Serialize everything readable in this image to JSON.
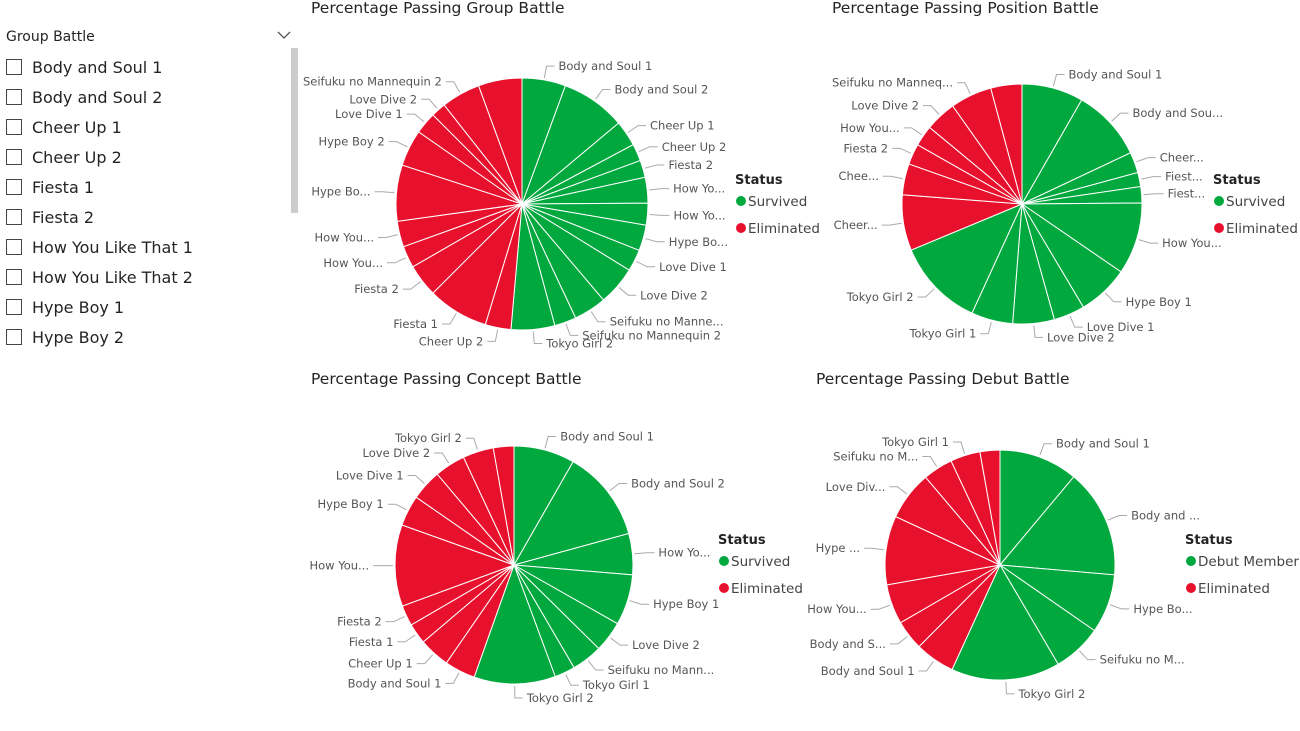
{
  "slicer": {
    "title": "Group Battle",
    "items": [
      "Body and Soul 1",
      "Body and Soul 2",
      "Cheer Up 1",
      "Cheer Up 2",
      "Fiesta 1",
      "Fiesta 2",
      "How You Like That 1",
      "How You Like That 2",
      "Hype Boy 1",
      "Hype Boy 2"
    ]
  },
  "chart_data": [
    {
      "type": "pie",
      "title": "Percentage Passing Group Battle",
      "legend_title": "Status",
      "series": [
        {
          "name": "Survived",
          "color": "#01a83e"
        },
        {
          "name": "Eliminated",
          "color": "#e8112d"
        }
      ],
      "categories": [
        "Body and Soul 1",
        "Body and Soul 2",
        "Cheer Up 1",
        "Cheer Up 2",
        "Fiesta 2",
        "How Yo...",
        "How Yo...",
        "Hype Bo...",
        "Love Dive 1",
        "Love Dive 2",
        "Seifuku no Manne...",
        "Seifuku no Mannequin 2",
        "Tokyo Girl 2",
        "Cheer Up 2",
        "Fiesta 1",
        "Fiesta 2",
        "How You...",
        "How You...",
        "Hype Bo...",
        "Hype Boy 2",
        "Love Dive 1",
        "Love Dive 2",
        "Seifuku no Mannequin 2",
        null
      ],
      "values": [
        5.6,
        8.3,
        3.3,
        2.2,
        2.2,
        3.3,
        2.8,
        3.3,
        2.8,
        5,
        4.2,
        2.8,
        5.6,
        3.3,
        7.8,
        4.2,
        2.8,
        3.3,
        7.2,
        4.7,
        2.8,
        1.9,
        5,
        5.6
      ],
      "colors": [
        "#01a83e",
        "#01a83e",
        "#01a83e",
        "#01a83e",
        "#01a83e",
        "#01a83e",
        "#01a83e",
        "#01a83e",
        "#01a83e",
        "#01a83e",
        "#01a83e",
        "#01a83e",
        "#01a83e",
        "#e8112d",
        "#e8112d",
        "#e8112d",
        "#e8112d",
        "#e8112d",
        "#e8112d",
        "#e8112d",
        "#e8112d",
        "#e8112d",
        "#e8112d",
        "#e8112d"
      ]
    },
    {
      "type": "pie",
      "title": "Percentage Passing Position Battle",
      "legend_title": "Status",
      "series": [
        {
          "name": "Survived",
          "color": "#01a83e"
        },
        {
          "name": "Eliminated",
          "color": "#e8112d"
        }
      ],
      "categories": [
        "Body and Soul 1",
        "Body and Sou...",
        "Cheer...",
        "Fiest...",
        "Fiest...",
        "How You...",
        "Hype Boy 1",
        "Love Dive 1",
        "Love Dive 2",
        "Tokyo Girl 1",
        "Tokyo Girl 2",
        "Cheer...",
        "Chee...",
        "Fiesta 2",
        "How You...",
        "Love Dive 2",
        "Seifuku no Manneq...",
        null
      ],
      "values": [
        8.3,
        9.7,
        2.8,
        1.9,
        2.2,
        9.7,
        6.9,
        4.2,
        5.6,
        5.6,
        11.9,
        7.5,
        4.2,
        2.8,
        2.8,
        4.2,
        5.6,
        4.2
      ],
      "colors": [
        "#01a83e",
        "#01a83e",
        "#01a83e",
        "#01a83e",
        "#01a83e",
        "#01a83e",
        "#01a83e",
        "#01a83e",
        "#01a83e",
        "#01a83e",
        "#01a83e",
        "#e8112d",
        "#e8112d",
        "#e8112d",
        "#e8112d",
        "#e8112d",
        "#e8112d",
        "#e8112d"
      ]
    },
    {
      "type": "pie",
      "title": "Percentage Passing Concept Battle",
      "legend_title": "Status",
      "series": [
        {
          "name": "Survived",
          "color": "#01a83e"
        },
        {
          "name": "Eliminated",
          "color": "#e8112d"
        }
      ],
      "categories": [
        "Body and Soul 1",
        "Body and Soul 2",
        "How Yo...",
        "Hype Boy 1",
        "Love Dive 2",
        "Seifuku no Mann...",
        "Tokyo Girl 1",
        "Tokyo Girl 2",
        "Body and Soul 1",
        "Cheer Up 1",
        "Fiesta 1",
        "Fiesta 2",
        "How You...",
        "Hype Boy 1",
        "Love Dive 1",
        "Love Dive 2",
        "Tokyo Girl 2",
        null
      ],
      "values": [
        8.3,
        12.5,
        5.6,
        6.9,
        4.2,
        4.2,
        2.8,
        11.1,
        4.2,
        4.2,
        2.8,
        2.8,
        11.1,
        4.2,
        4.2,
        4.2,
        4.2,
        2.8
      ],
      "colors": [
        "#01a83e",
        "#01a83e",
        "#01a83e",
        "#01a83e",
        "#01a83e",
        "#01a83e",
        "#01a83e",
        "#01a83e",
        "#e8112d",
        "#e8112d",
        "#e8112d",
        "#e8112d",
        "#e8112d",
        "#e8112d",
        "#e8112d",
        "#e8112d",
        "#e8112d",
        "#e8112d"
      ]
    },
    {
      "type": "pie",
      "title": "Percentage Passing Debut Battle",
      "legend_title": "Status",
      "series": [
        {
          "name": "Debut Member",
          "color": "#01a83e"
        },
        {
          "name": "Eliminated",
          "color": "#e8112d"
        }
      ],
      "categories": [
        "Body and Soul 1",
        "Body and ...",
        "Hype Bo...",
        "Seifuku no M...",
        "Tokyo Girl 2",
        "Body and Soul 1",
        "Body and S...",
        "How You...",
        "Hype ...",
        "Love Div...",
        "Seifuku no M...",
        "Tokyo Girl 1",
        null
      ],
      "values": [
        11.1,
        15.3,
        8.3,
        6.9,
        15.3,
        5.6,
        4.2,
        5.6,
        9.7,
        6.9,
        4.2,
        4.2,
        2.8
      ],
      "colors": [
        "#01a83e",
        "#01a83e",
        "#01a83e",
        "#01a83e",
        "#01a83e",
        "#e8112d",
        "#e8112d",
        "#e8112d",
        "#e8112d",
        "#e8112d",
        "#e8112d",
        "#e8112d",
        "#e8112d"
      ]
    }
  ]
}
